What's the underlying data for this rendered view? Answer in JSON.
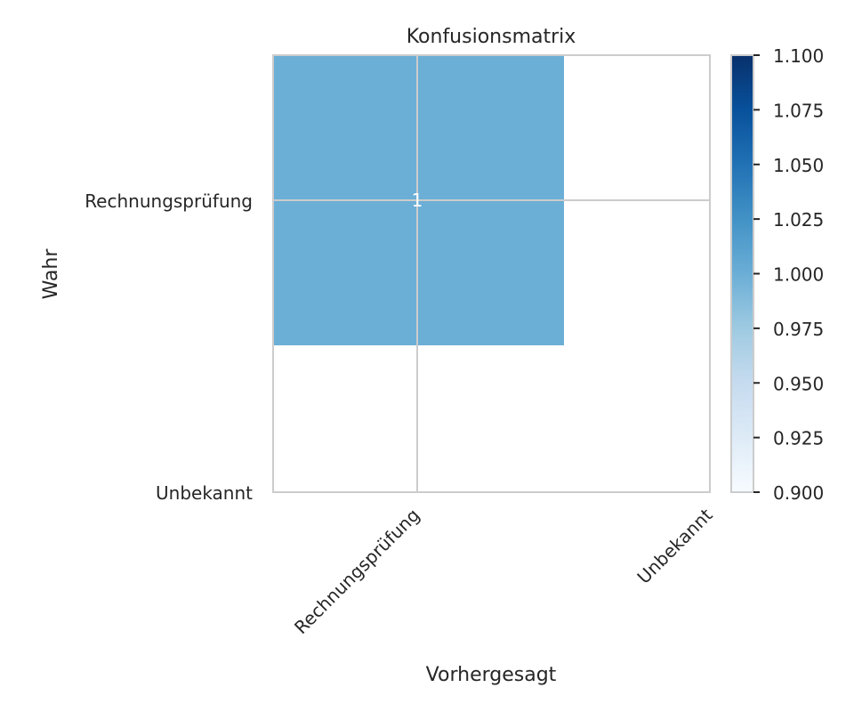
{
  "chart_data": {
    "type": "heatmap",
    "title": "Konfusionsmatrix",
    "xlabel": "Vorhergesagt",
    "ylabel": "Wahr",
    "x_categories": [
      "Rechnungsprüfung",
      "Unbekannt"
    ],
    "y_categories": [
      "Rechnungsprüfung",
      "Unbekannt"
    ],
    "cells": [
      {
        "x": "Rechnungsprüfung",
        "y": "Rechnungsprüfung",
        "value": 1,
        "label": "1"
      }
    ],
    "colorbar": {
      "colormap": "Blues",
      "range": [
        0.9,
        1.1
      ],
      "ticks": [
        "0.900",
        "0.925",
        "0.950",
        "0.975",
        "1.000",
        "1.025",
        "1.050",
        "1.075",
        "1.100"
      ]
    },
    "grid": true,
    "colors": {
      "cell_fill": "#6baed6",
      "grid": "#cccccc",
      "text": "#262626",
      "annotation": "#ffffff"
    }
  }
}
